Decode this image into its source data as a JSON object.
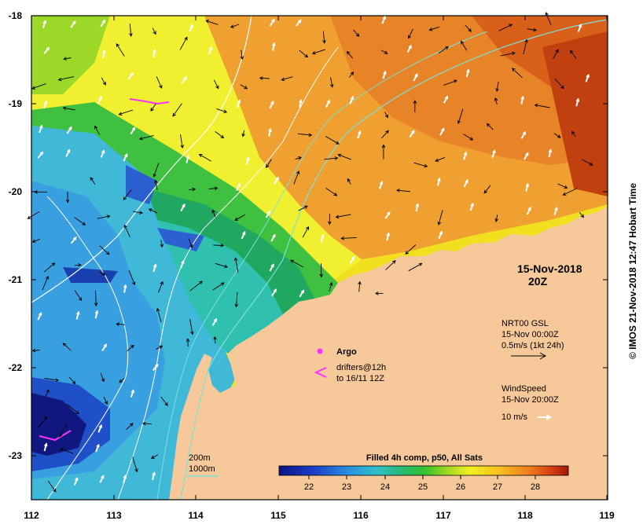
{
  "map": {
    "date": "15-Nov-2018",
    "time": "20Z",
    "lon_range": [
      112,
      119
    ],
    "lat_range": [
      -23.5,
      -18
    ],
    "x_ticks": [
      "112",
      "113",
      "114",
      "115",
      "116",
      "117",
      "118",
      "119"
    ],
    "y_ticks": [
      "-18",
      "-19",
      "-20",
      "-21",
      "-22",
      "-23"
    ],
    "land_color": "#f7c89a",
    "isobath_200_color": "#ffffff",
    "isobath_1000_color": "#7fe0d8"
  },
  "legend": {
    "argo_label": "Argo",
    "argo_color": "#ff33ff",
    "drifters_line1": "drifters@12h",
    "drifters_line2": "to 16/11 12Z",
    "drifter_color": "#ff33ff",
    "current_line1": "NRT00 GSL",
    "current_line2": "15-Nov 00:00Z",
    "current_line3": "0.5m/s (1kt 24h)",
    "wind_line1": "WindSpeed",
    "wind_line2": "15-Nov 20:00Z",
    "wind_line3": "10 m/s",
    "isobath_200": "200m",
    "isobath_1000": "1000m"
  },
  "colorbar": {
    "title": "Filled 4h comp, p50, All Sats",
    "ticks": [
      "22",
      "23",
      "24",
      "25",
      "26",
      "27",
      "28"
    ],
    "colors": [
      "#0a1280",
      "#1a3fc8",
      "#2a8fe0",
      "#30c0c8",
      "#28b878",
      "#30c030",
      "#9ed820",
      "#f0f020",
      "#f8c020",
      "#f08020",
      "#d84010",
      "#a01808"
    ]
  },
  "credit": "© IMOS 21-Nov-2018 12:47 Hobart Time"
}
